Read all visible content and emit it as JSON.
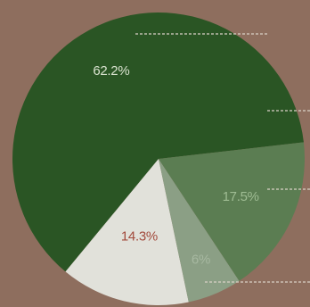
{
  "chart_data": {
    "type": "pie",
    "title": "",
    "slices": [
      {
        "label": "62.2%",
        "value": 62.2,
        "color": "#2a5524",
        "text_color": "#d9e2cf"
      },
      {
        "label": "14.3%",
        "value": 14.3,
        "color": "#e1e1da",
        "text_color": "#a24a3c"
      },
      {
        "label": "6%",
        "value": 6.0,
        "color": "#8b9f85",
        "text_color": "#a7b8a1"
      },
      {
        "label": "17.5%",
        "value": 17.5,
        "color": "#5b7d52",
        "text_color": "#9fbc93"
      }
    ],
    "legend": "none",
    "leader_line_color": "#d9d1c6"
  }
}
